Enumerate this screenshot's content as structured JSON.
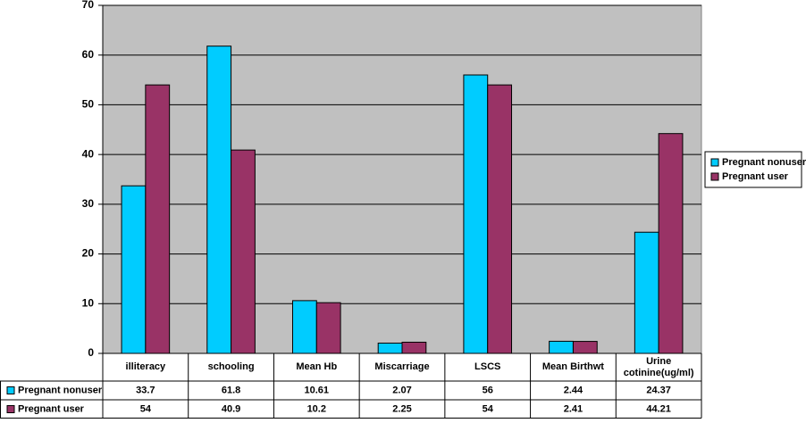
{
  "chart_data": {
    "type": "bar",
    "categories": [
      "illiteracy",
      "schooling",
      "Mean Hb",
      "Miscarriage",
      "LSCS",
      "Mean Birthwt",
      "Urine cotinine(ug/ml)"
    ],
    "series": [
      {
        "name": "Pregnant nonuser",
        "color": "#00ccff",
        "values": [
          33.7,
          61.8,
          10.61,
          2.07,
          56,
          2.44,
          24.37
        ]
      },
      {
        "name": "Pregnant user",
        "color": "#993366",
        "values": [
          54,
          40.9,
          10.2,
          2.25,
          54,
          2.41,
          44.21
        ]
      }
    ],
    "ylim": [
      0,
      70
    ],
    "yticks": [
      0,
      10,
      20,
      30,
      40,
      50,
      60,
      70
    ],
    "legend": "right",
    "plot_background": "#c0c0c0"
  }
}
